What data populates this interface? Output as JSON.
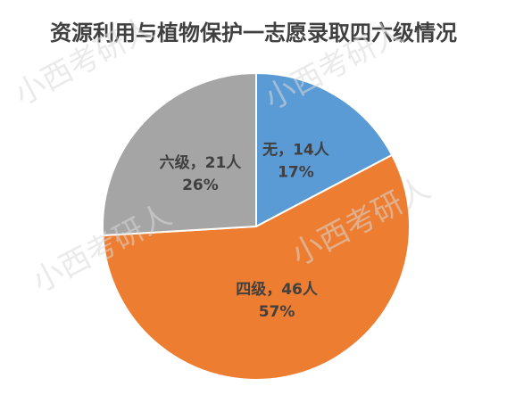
{
  "chart_data": {
    "type": "pie",
    "title": "资源利用与植物保护一志愿录取四六级情况",
    "values": [
      14,
      46,
      21
    ],
    "value_labels": [
      "无，14人",
      "四级，46人",
      "六级，21人"
    ],
    "percent_labels": [
      "17%",
      "57%",
      "26%"
    ],
    "colors": [
      "#5b9bd5",
      "#ed7d31",
      "#a5a5a5"
    ],
    "watermark": "小西考研人"
  }
}
